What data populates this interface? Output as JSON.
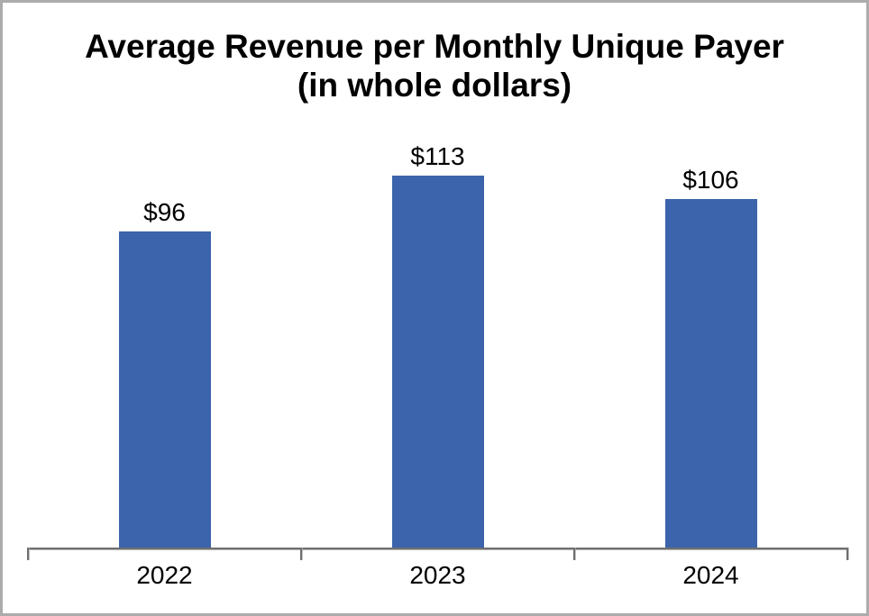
{
  "title": {
    "line1": "Average Revenue per Monthly Unique Payer",
    "line2": "(in whole dollars)"
  },
  "chart_data": {
    "type": "bar",
    "title": "Average Revenue per Monthly Unique Payer (in whole dollars)",
    "categories": [
      "2022",
      "2023",
      "2024"
    ],
    "values": [
      96,
      113,
      106
    ],
    "value_labels": [
      "$96",
      "$113",
      "$106"
    ],
    "xlabel": "",
    "ylabel": "",
    "ylim": [
      0,
      120
    ],
    "grid": false,
    "legend": false,
    "bar_color": "#3c64ac",
    "axis_color": "#6f6f6f",
    "background_color": "#ffffff",
    "frame_border_color": "#acacac"
  }
}
